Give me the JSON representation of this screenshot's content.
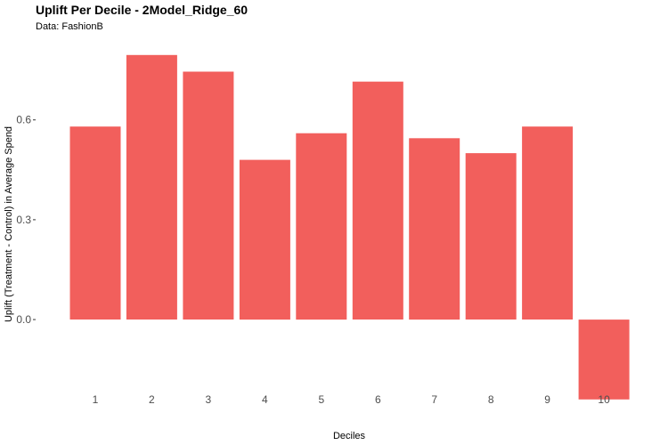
{
  "chart_data": {
    "type": "bar",
    "title": "Uplift Per Decile - 2Model_Ridge_60",
    "subtitle": "Data: FashionB",
    "xlabel": "Deciles",
    "ylabel": "Uplift (Treatment - Control) in Average Spend",
    "categories": [
      "1",
      "2",
      "3",
      "4",
      "5",
      "6",
      "7",
      "8",
      "9",
      "10"
    ],
    "values": [
      0.58,
      0.795,
      0.745,
      0.48,
      0.56,
      0.715,
      0.545,
      0.5,
      0.58,
      -0.24
    ],
    "ylim": [
      -0.27,
      0.84
    ],
    "y_ticks": [
      "0.0",
      "0.3",
      "0.6"
    ],
    "bar_color": "#F25F5C",
    "grid": false
  }
}
